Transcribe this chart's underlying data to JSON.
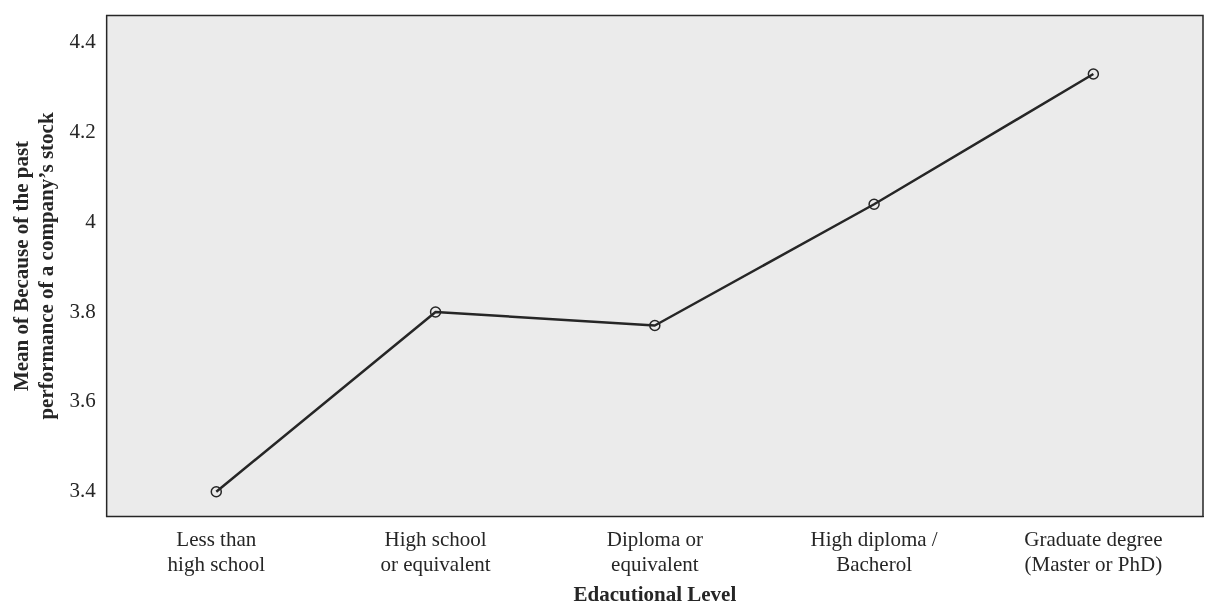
{
  "chart_data": {
    "type": "line",
    "categories": [
      "Less than\nhigh school",
      "High school\nor equivalent",
      "Diploma or\nequivalent",
      "High diploma /\nBacherol",
      "Graduate degree\n(Master or PhD)"
    ],
    "values": [
      3.4,
      3.8,
      3.77,
      4.04,
      4.33
    ],
    "color": "#262626",
    "xlabel": "Edacutional Level",
    "ylabel": "Mean of Because of the past\nperformance of a company’s stock",
    "ylim": [
      3.345,
      4.46
    ],
    "yticks": [
      3.4,
      3.6,
      3.8,
      {
        "value": 4,
        "label": "4"
      },
      4.2,
      4.4
    ],
    "grid": false,
    "legend": false,
    "marker": "circle",
    "line_style": "solid"
  }
}
